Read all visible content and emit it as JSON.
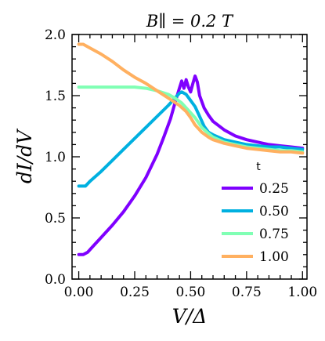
{
  "chart_data": {
    "type": "line",
    "title": "B∥ = 0.2 T",
    "xlabel": "V/Δ",
    "ylabel": "dI/dV",
    "xlim": [
      -0.03,
      1.02
    ],
    "ylim": [
      0.0,
      2.0
    ],
    "xticks": [
      "0.00",
      "0.25",
      "0.50",
      "0.75",
      "1.00"
    ],
    "yticks": [
      "0.0",
      "0.5",
      "1.0",
      "1.5",
      "2.0"
    ],
    "grid": false,
    "legend": {
      "title": "t",
      "position": "lower-right"
    },
    "series": [
      {
        "name": "0.25",
        "color": "#7f00ff",
        "x": [
          0.0,
          0.02,
          0.04,
          0.06,
          0.1,
          0.15,
          0.2,
          0.25,
          0.3,
          0.35,
          0.38,
          0.41,
          0.43,
          0.45,
          0.46,
          0.47,
          0.48,
          0.49,
          0.5,
          0.51,
          0.52,
          0.53,
          0.54,
          0.56,
          0.58,
          0.6,
          0.65,
          0.7,
          0.75,
          0.8,
          0.85,
          0.9,
          0.95,
          1.0
        ],
        "y": [
          0.2,
          0.2,
          0.22,
          0.26,
          0.34,
          0.44,
          0.55,
          0.68,
          0.83,
          1.02,
          1.16,
          1.31,
          1.44,
          1.56,
          1.62,
          1.56,
          1.63,
          1.57,
          1.53,
          1.6,
          1.66,
          1.61,
          1.5,
          1.4,
          1.34,
          1.29,
          1.22,
          1.17,
          1.14,
          1.12,
          1.1,
          1.09,
          1.08,
          1.07
        ]
      },
      {
        "name": "0.50",
        "color": "#00b0e0",
        "x": [
          0.0,
          0.03,
          0.05,
          0.1,
          0.15,
          0.2,
          0.25,
          0.3,
          0.35,
          0.4,
          0.43,
          0.45,
          0.46,
          0.48,
          0.5,
          0.52,
          0.54,
          0.56,
          0.58,
          0.6,
          0.65,
          0.7,
          0.75,
          0.8,
          0.85,
          0.9,
          0.95,
          1.0
        ],
        "y": [
          0.76,
          0.76,
          0.8,
          0.88,
          0.97,
          1.06,
          1.15,
          1.24,
          1.33,
          1.42,
          1.48,
          1.52,
          1.53,
          1.51,
          1.46,
          1.41,
          1.33,
          1.25,
          1.2,
          1.18,
          1.14,
          1.12,
          1.1,
          1.09,
          1.08,
          1.08,
          1.07,
          1.06
        ]
      },
      {
        "name": "0.75",
        "color": "#80ffb4",
        "x": [
          0.0,
          0.05,
          0.1,
          0.15,
          0.2,
          0.25,
          0.3,
          0.35,
          0.4,
          0.43,
          0.46,
          0.48,
          0.5,
          0.52,
          0.55,
          0.58,
          0.6,
          0.65,
          0.7,
          0.75,
          0.8,
          0.85,
          0.9,
          0.95,
          1.0
        ],
        "y": [
          1.57,
          1.57,
          1.57,
          1.57,
          1.57,
          1.57,
          1.56,
          1.54,
          1.51,
          1.48,
          1.44,
          1.4,
          1.36,
          1.32,
          1.24,
          1.19,
          1.16,
          1.12,
          1.1,
          1.08,
          1.07,
          1.06,
          1.05,
          1.05,
          1.04
        ]
      },
      {
        "name": "1.00",
        "color": "#ffb060",
        "x": [
          0.0,
          0.02,
          0.05,
          0.1,
          0.15,
          0.2,
          0.25,
          0.3,
          0.35,
          0.4,
          0.45,
          0.48,
          0.5,
          0.52,
          0.55,
          0.58,
          0.6,
          0.65,
          0.7,
          0.75,
          0.8,
          0.85,
          0.9,
          0.95,
          1.0
        ],
        "y": [
          1.92,
          1.92,
          1.89,
          1.84,
          1.78,
          1.71,
          1.65,
          1.6,
          1.54,
          1.48,
          1.42,
          1.37,
          1.32,
          1.26,
          1.2,
          1.16,
          1.14,
          1.11,
          1.09,
          1.07,
          1.06,
          1.05,
          1.04,
          1.04,
          1.03
        ]
      }
    ]
  }
}
